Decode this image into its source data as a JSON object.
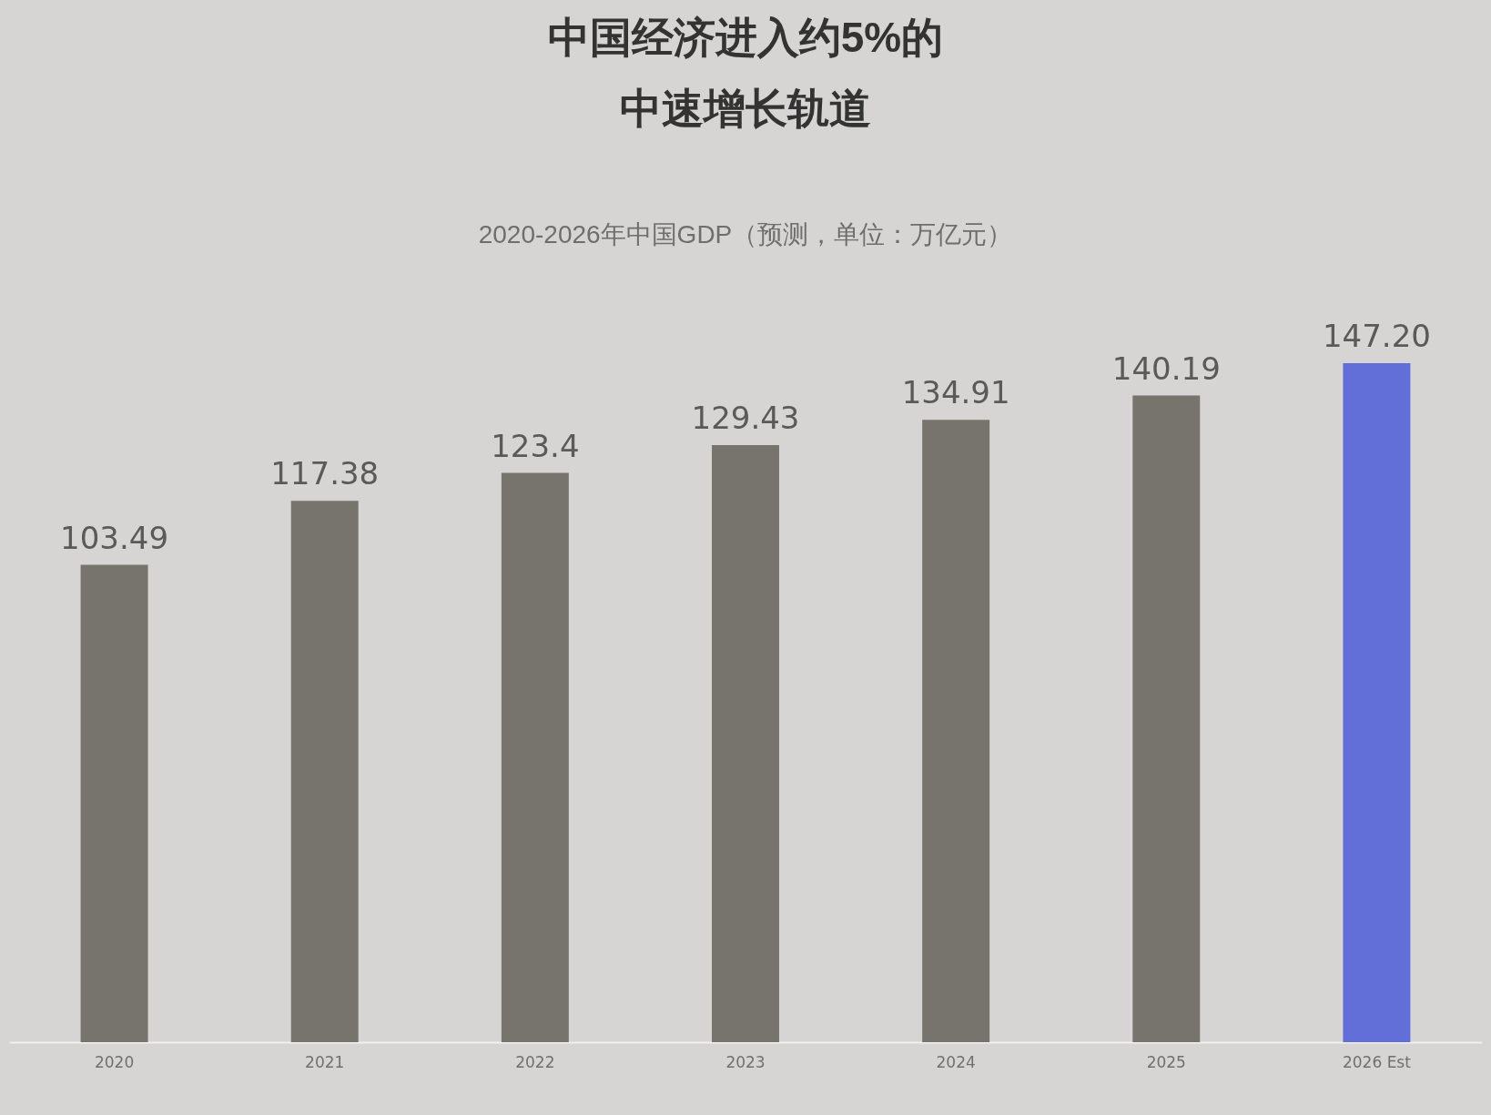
{
  "chart_data": {
    "type": "bar",
    "title": "中国经济进入约5%的中速增长轨道",
    "subtitle": "2020-2026年中国GDP（预测，单位：万亿元）",
    "categories": [
      "2020",
      "2021",
      "2022",
      "2023",
      "2024",
      "2025",
      "2026 Est"
    ],
    "values": [
      103.49,
      117.38,
      123.4,
      129.43,
      134.91,
      140.19,
      147.2
    ],
    "value_labels": [
      "103.49",
      "117.38",
      "123.4",
      "129.43",
      "134.91",
      "140.19",
      "147.20"
    ],
    "colors": [
      "#77746e",
      "#77746e",
      "#77746e",
      "#77746e",
      "#77746e",
      "#77746e",
      "#636fd8"
    ],
    "grid": false,
    "tick_labels": "x"
  }
}
